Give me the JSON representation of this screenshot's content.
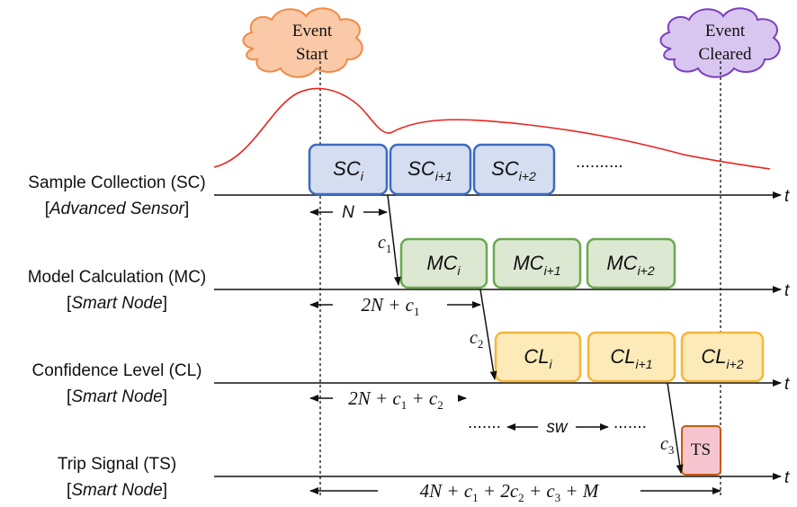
{
  "events": {
    "start": {
      "line1": "Event",
      "line2": "Start",
      "fill": "#f9c9a8",
      "stroke": "#f08a44"
    },
    "cleared": {
      "line1": "Event",
      "line2": "Cleared",
      "fill": "#d8c6f0",
      "stroke": "#7a40c0"
    }
  },
  "time_axis_symbol": "t",
  "lanes": [
    {
      "name": "Sample Collection (SC)",
      "bracket_open": "[",
      "device": "Advanced Sensor",
      "bracket_close": "]"
    },
    {
      "name": "Model Calculation (MC)",
      "bracket_open": "[",
      "device": "Smart Node",
      "bracket_close": "]"
    },
    {
      "name": "Confidence Level (CL)",
      "bracket_open": "[",
      "device": "Smart Node",
      "bracket_close": "]"
    },
    {
      "name": "Trip Signal (TS)",
      "bracket_open": "[",
      "device": "Smart Node",
      "bracket_close": "]"
    }
  ],
  "blocks": {
    "sc": {
      "base": "SC",
      "subs": [
        "i",
        "i+1",
        "i+2"
      ],
      "ellipsis": "..........",
      "fill": "#d5ddf0",
      "stroke": "#3d6bbf"
    },
    "mc": {
      "base": "MC",
      "subs": [
        "i",
        "i+1",
        "i+2"
      ],
      "fill": "#dde8d2",
      "stroke": "#6aa84f"
    },
    "cl": {
      "base": "CL",
      "subs": [
        "i",
        "i+1",
        "i+2"
      ],
      "fill": "#fdeab9",
      "stroke": "#f4b73a"
    },
    "ts": {
      "label": "TS",
      "fill": "#f6c5cf",
      "stroke": "#c55a11"
    }
  },
  "delays": {
    "c1": {
      "base": "c",
      "sub": "1"
    },
    "c2": {
      "base": "c",
      "sub": "2"
    },
    "c3": {
      "base": "c",
      "sub": "3"
    }
  },
  "intervals": {
    "n": "N",
    "mc": {
      "pre": "2N + c",
      "s1": "1"
    },
    "cl": {
      "pre": "2N + c",
      "s1": "1",
      "mid": " + c",
      "s2": "2"
    },
    "ts": {
      "pre": "4N + c",
      "s1": "1",
      "mid": " + 2c",
      "s2": "2",
      "mid2": " + c",
      "s3": "3",
      "post": " + M"
    }
  },
  "sliding_window": {
    "left_dots": ".......",
    "label": "sw",
    "right_dots": "......."
  },
  "signal_color": "#e8231e"
}
